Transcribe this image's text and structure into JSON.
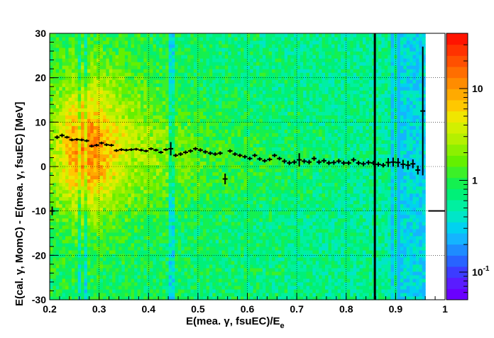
{
  "chart_data": {
    "type": "heatmap",
    "xlabel": "E(mea. γ, fsuEC)/E",
    "xlabel_sub": "e",
    "ylabel": "E(cal. γ, MomC) - E(mea. γ, fsuEC) [MeV]",
    "xlim": [
      0.2,
      1.0
    ],
    "ylim": [
      -30,
      30
    ],
    "x_ticks": [
      "0.2",
      "0.3",
      "0.4",
      "0.5",
      "0.6",
      "0.7",
      "0.8",
      "0.9",
      "1"
    ],
    "y_ticks": [
      "-30",
      "-20",
      "-10",
      "0",
      "10",
      "20",
      "30"
    ],
    "grid": true,
    "colorbar": {
      "scale": "log",
      "labels": [
        {
          "text": "10",
          "value": 10
        },
        {
          "text": "1",
          "value": 1
        },
        {
          "text": "10",
          "sup": "-1",
          "value": 0.1
        }
      ],
      "colors": [
        "#6a00ff",
        "#5a1cff",
        "#3c3cff",
        "#2864ff",
        "#1e8cff",
        "#14b4ff",
        "#00d2f0",
        "#00e6c8",
        "#00f0a0",
        "#00f078",
        "#14f050",
        "#3cf028",
        "#64f000",
        "#8cf000",
        "#b4f000",
        "#d2f000",
        "#f0e600",
        "#ffc800",
        "#ffaa00",
        "#ff8c00",
        "#ff6e00",
        "#ff5000",
        "#ff3200",
        "#ff1400"
      ]
    },
    "series": [
      {
        "name": "profile",
        "x": [
          0.205,
          0.215,
          0.225,
          0.235,
          0.245,
          0.255,
          0.265,
          0.275,
          0.285,
          0.295,
          0.305,
          0.315,
          0.325,
          0.335,
          0.345,
          0.355,
          0.365,
          0.375,
          0.385,
          0.395,
          0.405,
          0.415,
          0.425,
          0.435,
          0.445,
          0.455,
          0.465,
          0.475,
          0.485,
          0.495,
          0.505,
          0.515,
          0.525,
          0.535,
          0.545,
          0.555,
          0.565,
          0.575,
          0.585,
          0.595,
          0.605,
          0.615,
          0.625,
          0.635,
          0.645,
          0.655,
          0.665,
          0.675,
          0.685,
          0.695,
          0.705,
          0.715,
          0.725,
          0.735,
          0.745,
          0.755,
          0.765,
          0.775,
          0.785,
          0.795,
          0.805,
          0.815,
          0.825,
          0.835,
          0.845,
          0.855,
          0.865,
          0.875,
          0.885,
          0.895,
          0.905,
          0.915,
          0.925,
          0.935,
          0.945,
          0.955
        ],
        "y": [
          -10,
          6.6,
          7.0,
          6.6,
          6.0,
          6.1,
          6.0,
          5.8,
          4.6,
          4.8,
          5.3,
          4.9,
          4.8,
          3.6,
          3.8,
          3.7,
          3.8,
          3.9,
          3.7,
          3.5,
          4.0,
          3.7,
          3.2,
          3.8,
          4.0,
          2.5,
          2.8,
          3.2,
          3.5,
          4.0,
          3.7,
          3.3,
          3.0,
          2.8,
          3.0,
          -2.8,
          3.5,
          2.8,
          2.5,
          2.2,
          1.8,
          2.5,
          1.7,
          1.3,
          1.6,
          2.5,
          1.8,
          1.2,
          0.8,
          1.0,
          1.5,
          1.2,
          1.0,
          1.8,
          1.0,
          1.3,
          0.8,
          0.9,
          1.2,
          0.8,
          0.8,
          1.5,
          0.8,
          0.6,
          0.9,
          0.8,
          0.5,
          0.3,
          0.9,
          1.0,
          0.9,
          0.5,
          0.3,
          0.6,
          -0.8,
          12.5
        ],
        "yerr": [
          1.0,
          0.4,
          0.4,
          0.3,
          0.3,
          0.3,
          0.3,
          0.3,
          0.3,
          0.3,
          0.3,
          0.3,
          0.3,
          0.3,
          0.3,
          0.3,
          0.3,
          0.3,
          0.3,
          0.3,
          0.3,
          0.3,
          0.3,
          0.3,
          1.5,
          0.4,
          0.4,
          0.4,
          0.4,
          0.4,
          0.4,
          0.4,
          0.4,
          0.4,
          0.4,
          1.2,
          0.4,
          0.4,
          0.4,
          0.4,
          0.4,
          0.4,
          0.4,
          0.4,
          0.4,
          0.4,
          0.4,
          0.5,
          0.5,
          0.5,
          1.5,
          0.5,
          0.5,
          0.5,
          0.5,
          0.5,
          0.5,
          0.5,
          0.5,
          0.5,
          0.5,
          0.5,
          0.5,
          0.5,
          0.5,
          0.5,
          0.5,
          0.5,
          1.0,
          1.0,
          1.0,
          1.0,
          1.0,
          1.0,
          1.0,
          14.5
        ]
      }
    ],
    "overflow_marker_y": -10
  }
}
